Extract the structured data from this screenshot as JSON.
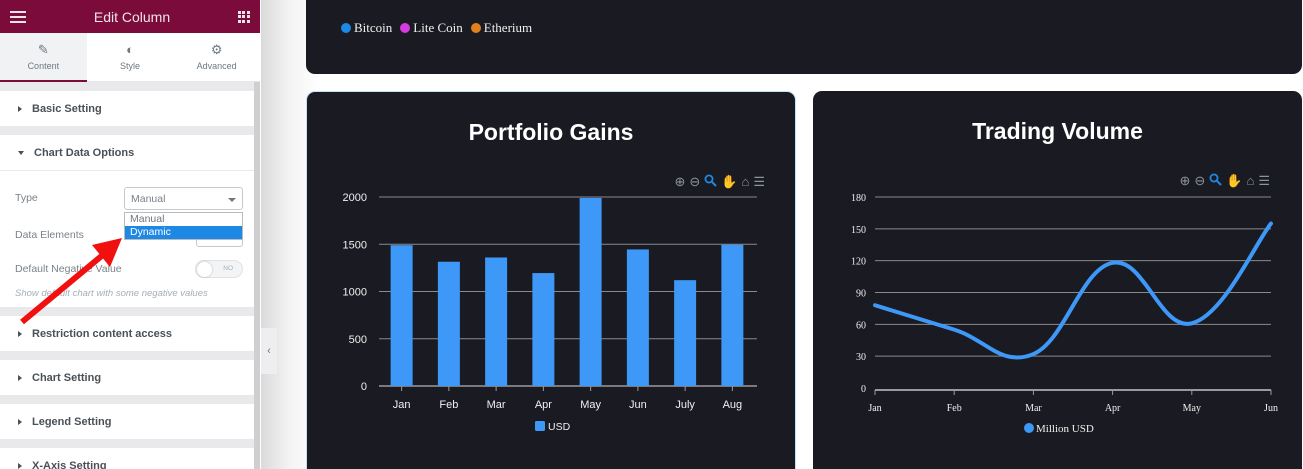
{
  "sidebar": {
    "header_title": "Edit Column",
    "tabs": [
      {
        "label": "Content",
        "icon": "pencil-icon",
        "glyph": "✎",
        "active": true
      },
      {
        "label": "Style",
        "icon": "contrast-icon",
        "glyph": "◐",
        "active": false
      },
      {
        "label": "Advanced",
        "icon": "gear-icon",
        "glyph": "⚙",
        "active": false
      }
    ],
    "sections": {
      "basic": "Basic Setting",
      "chart_data_options": "Chart Data Options",
      "restriction": "Restriction content access",
      "chart_setting": "Chart Setting",
      "legend_setting": "Legend Setting",
      "x_axis_setting": "X-Axis Setting"
    },
    "chart_data_fields": {
      "type_label": "Type",
      "type_value": "Manual",
      "type_options": [
        "Manual",
        "Dynamic"
      ],
      "type_highlighted": "Dynamic",
      "data_elements_label": "Data Elements",
      "default_negative_label": "Default Negative Value",
      "default_negative_toggle": "NO",
      "help_text": "Show default chart with some negative values"
    },
    "collapse_glyph": "‹"
  },
  "top_card": {
    "legend": [
      {
        "label": "Bitcoin",
        "color": "#1e88e5"
      },
      {
        "label": "Lite Coin",
        "color": "#d63be0"
      },
      {
        "label": "Etherium",
        "color": "#e0801b"
      }
    ]
  },
  "toolbar_icons": [
    {
      "name": "zoom-in-icon",
      "glyph": "⊕"
    },
    {
      "name": "zoom-out-icon",
      "glyph": "⊖"
    },
    {
      "name": "selection-zoom-icon",
      "glyph": "🔍"
    },
    {
      "name": "pan-hand-icon",
      "glyph": "✋"
    },
    {
      "name": "reset-home-icon",
      "glyph": "⌂"
    },
    {
      "name": "menu-icon",
      "glyph": "☰"
    }
  ],
  "colors": {
    "header_bg": "#7a0b3a",
    "series_blue": "#3d98f7",
    "card_bg": "#1a1a22"
  },
  "chart_data": [
    {
      "type": "bar",
      "title": "Portfolio Gains",
      "categories": [
        "Jan",
        "Feb",
        "Mar",
        "Apr",
        "May",
        "Jun",
        "July",
        "Aug"
      ],
      "series": [
        {
          "name": "USD",
          "values": [
            1490,
            1315,
            1360,
            1195,
            1990,
            1445,
            1120,
            1495
          ]
        }
      ],
      "ylim": [
        0,
        2000
      ],
      "yticks": [
        0,
        500,
        1000,
        1500,
        2000
      ],
      "xlabel": "",
      "ylabel": "",
      "grid": true,
      "legend": "bottom-center"
    },
    {
      "type": "line",
      "title": "Trading Volume",
      "categories": [
        "Jan",
        "Feb",
        "Mar",
        "Apr",
        "May",
        "Jun"
      ],
      "series": [
        {
          "name": "Million USD",
          "values": [
            78,
            55,
            32,
            118,
            61,
            155
          ]
        }
      ],
      "ylim": [
        0,
        180
      ],
      "yticks": [
        0,
        30,
        60,
        90,
        120,
        150,
        180
      ],
      "xlabel": "",
      "ylabel": "",
      "grid": true,
      "smooth": true,
      "legend": "bottom-center"
    }
  ]
}
